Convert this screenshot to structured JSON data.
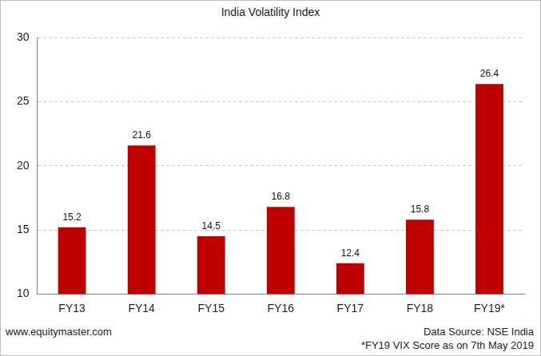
{
  "chart_data": {
    "type": "bar",
    "title": "India Volatility Index",
    "categories": [
      "FY13",
      "FY14",
      "FY15",
      "FY16",
      "FY17",
      "FY18",
      "FY19*"
    ],
    "values": [
      15.2,
      21.6,
      14.5,
      16.8,
      12.4,
      15.8,
      26.4
    ],
    "color": "#c00000",
    "ylim": [
      10,
      30
    ],
    "yticks": [
      10,
      15,
      20,
      25,
      30
    ],
    "grid": true,
    "data_labels": true,
    "annotations": [
      "www.equitymaster.com",
      "Data Source: NSE India",
      "*FY19 VIX Score as on 7th May 2019"
    ]
  }
}
